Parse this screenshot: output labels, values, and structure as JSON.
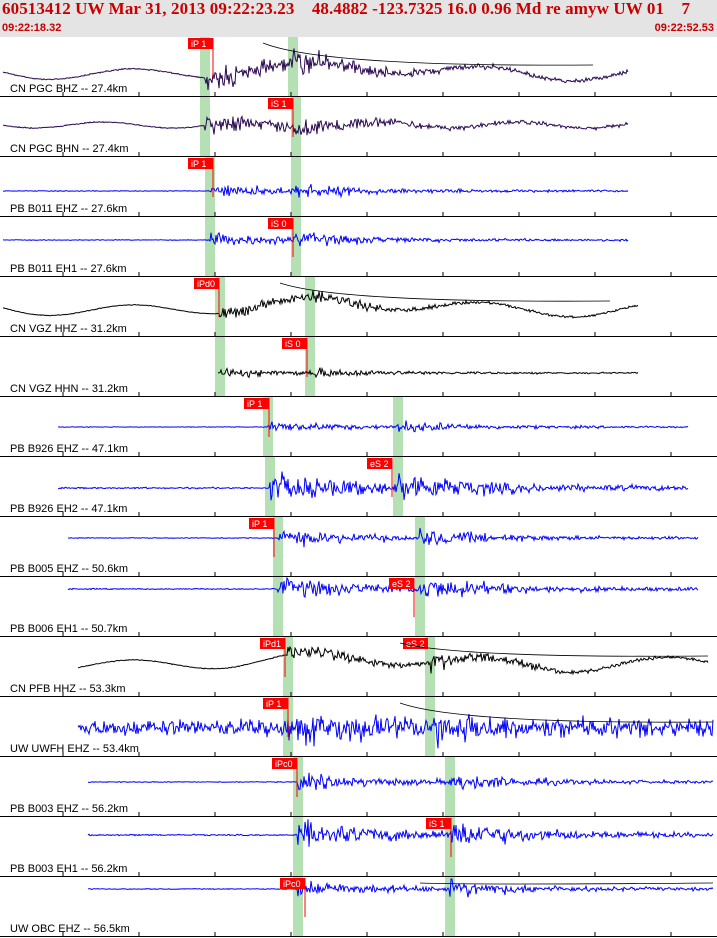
{
  "header": {
    "title": "60513412 UW Mar 31, 2013 09:22:23.23    48.4882 -123.7325 16.0 0.96 Md re amyw UW 01    7",
    "start_time": "09:22:18.32",
    "end_time": "09:22:52.53"
  },
  "colors": {
    "header_text": "#c80000",
    "header_bg": "#e4e4e4",
    "pick_flag": "#ff0000",
    "pick_window": "#b4e0b4",
    "trace_blue": "#0000ff",
    "trace_purple": "#2a0850",
    "trace_black": "#000000"
  },
  "traces": [
    {
      "label": "CN PGC BHZ -- 27.4km",
      "color": "purple",
      "type": "bb",
      "pick_text": "iP 1",
      "pick2_text": ""
    },
    {
      "label": "CN PGC BHN -- 27.4km",
      "color": "purple",
      "type": "bbn",
      "pick_text": "iS 1",
      "pick2_text": ""
    },
    {
      "label": "PB B011 EHZ -- 27.6km",
      "color": "blue",
      "type": "sp",
      "pick_text": "iP 1",
      "pick2_text": ""
    },
    {
      "label": "PB B011 EH1 -- 27.6km",
      "color": "blue",
      "type": "sp",
      "pick_text": "iS 0",
      "pick2_text": ""
    },
    {
      "label": "CN VGZ HHZ -- 31.2km",
      "color": "black",
      "type": "bb",
      "pick_text": "iPd0",
      "pick2_text": ""
    },
    {
      "label": "CN VGZ HHN -- 31.2km",
      "color": "black",
      "type": "sp",
      "pick_text": "iS 0",
      "pick2_text": ""
    },
    {
      "label": "PB B926 EHZ -- 47.1km",
      "color": "blue",
      "type": "sp",
      "pick_text": "iP 1",
      "pick2_text": ""
    },
    {
      "label": "PB B926 EH2 -- 47.1km",
      "color": "blue",
      "type": "sp",
      "pick_text": "eS 2",
      "pick2_text": ""
    },
    {
      "label": "PB B005 EHZ -- 50.6km",
      "color": "blue",
      "type": "sp",
      "pick_text": "iP 1",
      "pick2_text": ""
    },
    {
      "label": "PB B006 EH1 -- 50.7km",
      "color": "blue",
      "type": "sp",
      "pick_text": "eS 2",
      "pick2_text": ""
    },
    {
      "label": "CN PFB HHZ -- 53.3km",
      "color": "black",
      "type": "bbw",
      "pick_text": "iPd1",
      "pick2_text": "eS 2"
    },
    {
      "label": "UW UWFH EHZ -- 53.4km",
      "color": "blue",
      "type": "noisy",
      "pick_text": "iP 1",
      "pick2_text": ""
    },
    {
      "label": "PB B003 EHZ -- 56.2km",
      "color": "blue",
      "type": "sp",
      "pick_text": "iPc0",
      "pick2_text": ""
    },
    {
      "label": "PB B003 EH1 -- 56.2km",
      "color": "blue",
      "type": "sp",
      "pick_text": "iS 1",
      "pick2_text": ""
    },
    {
      "label": "UW OBC EHZ -- 56.5km",
      "color": "blue",
      "type": "sp",
      "pick_text": "iPc0",
      "pick2_text": ""
    }
  ]
}
